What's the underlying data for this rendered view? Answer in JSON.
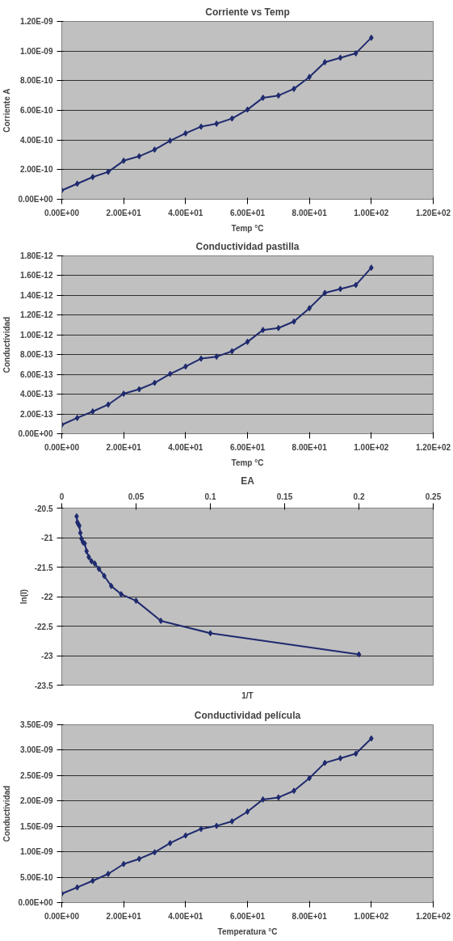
{
  "chart_data": [
    {
      "type": "line",
      "title": "Corriente vs Temp",
      "xlabel": "Temp °C",
      "ylabel": "Corriente A",
      "x": [
        0,
        5,
        10,
        15,
        20,
        25,
        30,
        35,
        40,
        45,
        50,
        55,
        60,
        65,
        70,
        75,
        80,
        85,
        90,
        95,
        100
      ],
      "series": [
        {
          "color": "#1f2a6e",
          "values": [
            6e-11,
            1.05e-10,
            1.5e-10,
            1.85e-10,
            2.6e-10,
            2.9e-10,
            3.35e-10,
            3.95e-10,
            4.45e-10,
            4.9e-10,
            5.1e-10,
            5.45e-10,
            6.05e-10,
            6.85e-10,
            7e-10,
            7.45e-10,
            8.25e-10,
            9.25e-10,
            9.55e-10,
            9.85e-10,
            1.09e-09
          ]
        }
      ],
      "xlim": [
        0,
        120
      ],
      "xticks": [
        {
          "value": 0,
          "label": "0.00E+00"
        },
        {
          "value": 20,
          "label": "2.00E+01"
        },
        {
          "value": 40,
          "label": "4.00E+01"
        },
        {
          "value": 60,
          "label": "6.00E+01"
        },
        {
          "value": 80,
          "label": "8.00E+01"
        },
        {
          "value": 100,
          "label": "1.00E+02"
        },
        {
          "value": 120,
          "label": "1.20E+02"
        }
      ],
      "ylim": [
        0,
        1.2e-09
      ],
      "yticks": [
        {
          "value": 0,
          "label": "0.00E+00"
        },
        {
          "value": 2e-10,
          "label": "2.00E-10"
        },
        {
          "value": 4e-10,
          "label": "4.00E-10"
        },
        {
          "value": 6e-10,
          "label": "6.00E-10"
        },
        {
          "value": 8e-10,
          "label": "8.00E-10"
        },
        {
          "value": 1e-09,
          "label": "1.00E-09"
        },
        {
          "value": 1.2e-09,
          "label": "1.20E-09"
        }
      ],
      "grid": "y",
      "marker": "diamond"
    },
    {
      "type": "line",
      "title": "Conductividad pastilla",
      "xlabel": "Temp °C",
      "ylabel": "Conductividad",
      "x": [
        0,
        5,
        10,
        15,
        20,
        25,
        30,
        35,
        40,
        45,
        50,
        55,
        60,
        65,
        70,
        75,
        80,
        85,
        90,
        95,
        100
      ],
      "series": [
        {
          "color": "#1f2a6e",
          "values": [
            9e-14,
            1.6e-13,
            2.25e-13,
            2.95e-13,
            4.05e-13,
            4.5e-13,
            5.15e-13,
            6.05e-13,
            6.8e-13,
            7.6e-13,
            7.8e-13,
            8.35e-13,
            9.3e-13,
            1.05e-12,
            1.07e-12,
            1.135e-12,
            1.27e-12,
            1.425e-12,
            1.465e-12,
            1.505e-12,
            1.68e-12
          ]
        }
      ],
      "xlim": [
        0,
        120
      ],
      "xticks": [
        {
          "value": 0,
          "label": "0.00E+00"
        },
        {
          "value": 20,
          "label": "2.00E+01"
        },
        {
          "value": 40,
          "label": "4.00E+01"
        },
        {
          "value": 60,
          "label": "6.00E+01"
        },
        {
          "value": 80,
          "label": "8.00E+01"
        },
        {
          "value": 100,
          "label": "1.00E+02"
        },
        {
          "value": 120,
          "label": "1.20E+02"
        }
      ],
      "ylim": [
        0,
        1.8e-12
      ],
      "yticks": [
        {
          "value": 0,
          "label": "0.00E+00"
        },
        {
          "value": 2e-13,
          "label": "2.00E-13"
        },
        {
          "value": 4e-13,
          "label": "4.00E-13"
        },
        {
          "value": 6e-13,
          "label": "6.00E-13"
        },
        {
          "value": 8e-13,
          "label": "8.00E-13"
        },
        {
          "value": 1e-12,
          "label": "1.00E-12"
        },
        {
          "value": 1.2e-12,
          "label": "1.20E-12"
        },
        {
          "value": 1.4e-12,
          "label": "1.40E-12"
        },
        {
          "value": 1.6e-12,
          "label": "1.60E-12"
        },
        {
          "value": 1.8e-12,
          "label": "1.80E-12"
        }
      ],
      "grid": "y",
      "marker": "diamond"
    },
    {
      "type": "line",
      "title": "EA",
      "xlabel": "1/T",
      "ylabel": "ln(I)",
      "x": [
        0.2,
        0.1,
        0.0667,
        0.05,
        0.04,
        0.0333,
        0.0286,
        0.025,
        0.0222,
        0.02,
        0.0182,
        0.0167,
        0.0154,
        0.0143,
        0.0133,
        0.0125,
        0.0118,
        0.0111,
        0.0105,
        0.01
      ],
      "series": [
        {
          "color": "#1f2a6e",
          "values": [
            -22.98,
            -22.62,
            -22.41,
            -22.07,
            -21.96,
            -21.82,
            -21.65,
            -21.53,
            -21.44,
            -21.4,
            -21.33,
            -21.23,
            -21.1,
            -21.08,
            -21.02,
            -20.92,
            -20.8,
            -20.77,
            -20.74,
            -20.64
          ]
        }
      ],
      "xlim": [
        0,
        0.25
      ],
      "xticks": [
        0,
        0.05,
        0.1,
        0.15,
        0.2,
        0.25
      ],
      "ylim": [
        -23.5,
        -20.5
      ],
      "yticks": [
        -23.5,
        -23,
        -22.5,
        -22,
        -21.5,
        -21,
        -20.5
      ],
      "grid": "y",
      "marker": "diamond"
    },
    {
      "type": "line",
      "title": "Conductividad película",
      "xlabel": "Temperatura °C",
      "ylabel": "Conductividad",
      "x": [
        0,
        5,
        10,
        15,
        20,
        25,
        30,
        35,
        40,
        45,
        50,
        55,
        60,
        65,
        70,
        75,
        80,
        85,
        90,
        95,
        100
      ],
      "series": [
        {
          "color": "#1f2a6e",
          "values": [
            1.75e-10,
            3e-10,
            4.3e-10,
            5.65e-10,
            7.6e-10,
            8.6e-10,
            9.9e-10,
            1.17e-09,
            1.32e-09,
            1.45e-09,
            1.51e-09,
            1.6e-09,
            1.79e-09,
            2.03e-09,
            2.07e-09,
            2.2e-09,
            2.45e-09,
            2.75e-09,
            2.84e-09,
            2.93e-09,
            3.23e-09
          ]
        }
      ],
      "xlim": [
        0,
        120
      ],
      "xticks": [
        {
          "value": 0,
          "label": "0.00E+00"
        },
        {
          "value": 20,
          "label": "2.00E+01"
        },
        {
          "value": 40,
          "label": "4.00E+01"
        },
        {
          "value": 60,
          "label": "6.00E+01"
        },
        {
          "value": 80,
          "label": "8.00E+01"
        },
        {
          "value": 100,
          "label": "1.00E+02"
        },
        {
          "value": 120,
          "label": "1.20E+02"
        }
      ],
      "ylim": [
        0,
        3.5e-09
      ],
      "yticks": [
        {
          "value": 0,
          "label": "0.00E+00"
        },
        {
          "value": 5e-10,
          "label": "5.00E-10"
        },
        {
          "value": 1e-09,
          "label": "1.00E-09"
        },
        {
          "value": 1.5e-09,
          "label": "1.50E-09"
        },
        {
          "value": 2e-09,
          "label": "2.00E-09"
        },
        {
          "value": 2.5e-09,
          "label": "2.50E-09"
        },
        {
          "value": 3e-09,
          "label": "3.00E-09"
        },
        {
          "value": 3.5e-09,
          "label": "3.50E-09"
        }
      ],
      "grid": "y",
      "marker": "diamond"
    }
  ]
}
